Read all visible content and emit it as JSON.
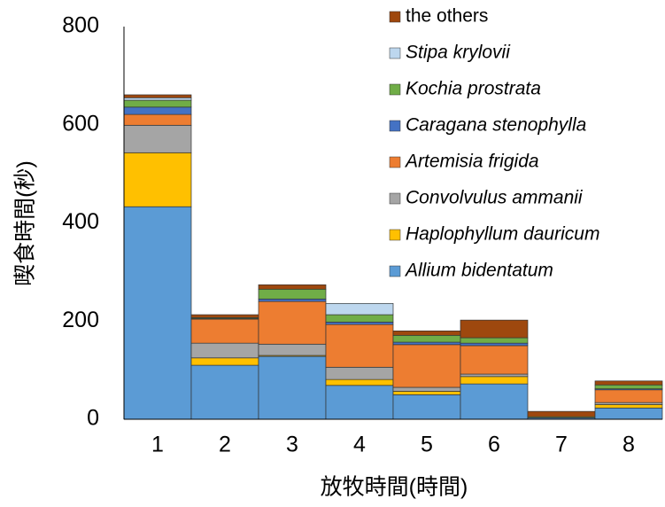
{
  "chart_data": {
    "type": "bar",
    "stacked": true,
    "x_label": "放牧時間(時間)",
    "y_label": "喫食時間(秒)",
    "categories": [
      "1",
      "2",
      "3",
      "4",
      "5",
      "6",
      "7",
      "8"
    ],
    "series": [
      {
        "name": "Allium bidentatum",
        "color": "#5b9bd5",
        "values": [
          433,
          110,
          128,
          69,
          50,
          72,
          3,
          23
        ]
      },
      {
        "name": "Haplophyllum dauricum",
        "color": "#ffc000",
        "values": [
          110,
          15,
          2,
          12,
          7,
          15,
          0,
          7
        ]
      },
      {
        "name": "Convolvulus ammanii",
        "color": "#a5a5a5",
        "values": [
          56,
          30,
          23,
          25,
          8,
          5,
          0,
          4
        ]
      },
      {
        "name": "Artemisia frigida",
        "color": "#ed7d31",
        "values": [
          22,
          49,
          87,
          87,
          87,
          58,
          0,
          26
        ]
      },
      {
        "name": "Caragana stenophylla",
        "color": "#4472c4",
        "values": [
          15,
          1,
          5,
          5,
          5,
          5,
          0,
          2
        ]
      },
      {
        "name": "Kochia prostrata",
        "color": "#70ad47",
        "values": [
          14,
          2,
          20,
          15,
          14,
          11,
          2,
          8
        ]
      },
      {
        "name": "Stipa krylovii",
        "color": "#bdd7ee",
        "values": [
          5,
          0,
          0,
          23,
          0,
          0,
          0,
          0
        ]
      },
      {
        "name": "the others",
        "color": "#9e480e",
        "values": [
          6,
          6,
          9,
          0,
          9,
          36,
          11,
          8
        ]
      }
    ],
    "ylim": [
      0,
      800
    ],
    "yticks": [
      0,
      200,
      400,
      600,
      800
    ],
    "grid": false,
    "legend": "top-right"
  }
}
